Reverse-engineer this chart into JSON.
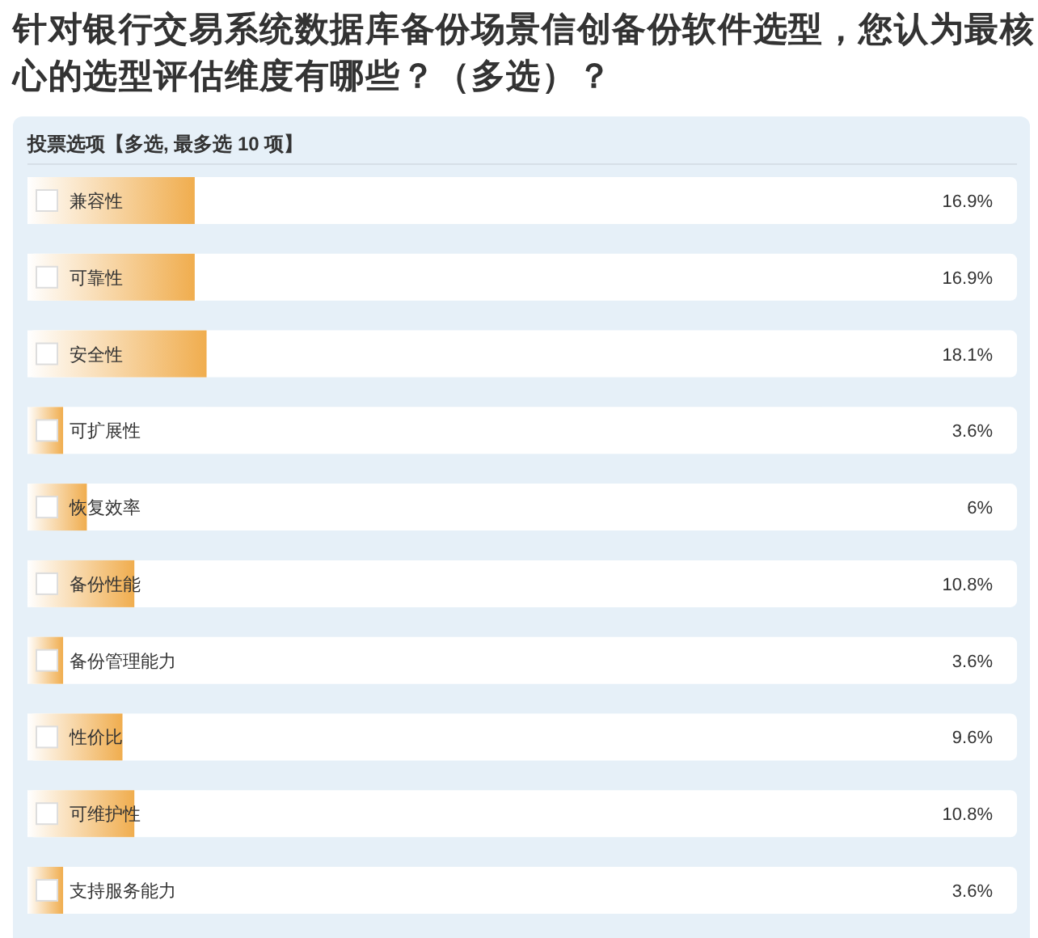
{
  "chart_data": {
    "type": "bar",
    "orientation": "horizontal",
    "title": "针对银行交易系统数据库备份场景信创备份软件选型，您认为最核心的选型评估维度有哪些？（多选）？",
    "subtitle": "投票选项【多选, 最多选 10 项】",
    "categories": [
      "兼容性",
      "可靠性",
      "安全性",
      "可扩展性",
      "恢复效率",
      "备份性能",
      "备份管理能力",
      "性价比",
      "可维护性",
      "支持服务能力"
    ],
    "values": [
      16.9,
      16.9,
      18.1,
      3.6,
      6,
      10.8,
      3.6,
      9.6,
      10.8,
      3.6
    ],
    "value_labels": [
      "16.9%",
      "16.9%",
      "18.1%",
      "3.6%",
      "6%",
      "10.8%",
      "3.6%",
      "9.6%",
      "10.8%",
      "3.6%"
    ],
    "color": "#f0ad4e",
    "xlim": [
      0,
      100
    ],
    "tick_labels": "y"
  }
}
